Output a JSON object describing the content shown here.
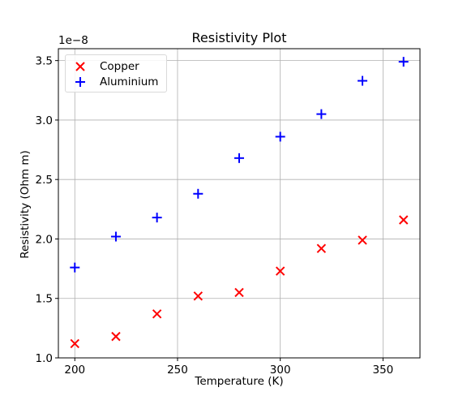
{
  "chart_data": {
    "type": "scatter",
    "title": "Resistivity Plot",
    "xlabel": "Temperature (K)",
    "ylabel": "Resistivity (Ohm m)",
    "y_offset_label": "1e−8",
    "xlim": [
      192,
      368
    ],
    "ylim": [
      1.0,
      3.6
    ],
    "xticks": [
      200,
      250,
      300,
      350
    ],
    "yticks": [
      1.0,
      1.5,
      2.0,
      2.5,
      3.0,
      3.5
    ],
    "xtick_labels": [
      "200",
      "250",
      "300",
      "350"
    ],
    "ytick_labels": [
      "1.0",
      "1.5",
      "2.0",
      "2.5",
      "3.0",
      "3.5"
    ],
    "grid": true,
    "legend_position": "top-left",
    "series": [
      {
        "name": "Copper",
        "marker": "x",
        "color": "#ff0000",
        "x": [
          200,
          220,
          240,
          260,
          280,
          300,
          320,
          340,
          360
        ],
        "y": [
          1.12,
          1.18,
          1.37,
          1.52,
          1.55,
          1.73,
          1.92,
          1.99,
          2.16
        ]
      },
      {
        "name": "Aluminium",
        "marker": "+",
        "color": "#0000ff",
        "x": [
          200,
          220,
          240,
          260,
          280,
          300,
          320,
          340,
          360
        ],
        "y": [
          1.76,
          2.02,
          2.18,
          2.38,
          2.68,
          2.86,
          3.05,
          3.33,
          3.49
        ]
      }
    ]
  }
}
